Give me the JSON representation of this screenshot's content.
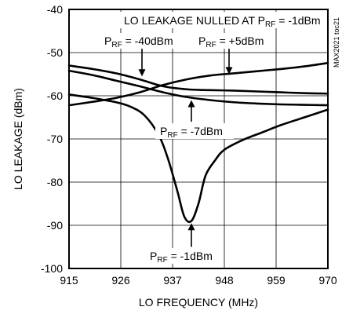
{
  "chart_data": {
    "type": "line",
    "title": "LO LEAKAGE NULLED AT P<sub>RF</sub> = -1dBm",
    "title_parts": {
      "pre": "LO LEAKAGE NULLED AT P",
      "sub": "RF",
      "post": " = -1dBm"
    },
    "code": "MAX2021 toc21",
    "xlabel": "LO FREQUENCY (MHz)",
    "ylabel": "LO LEAKAGE (dBm)",
    "xlim": [
      915,
      970
    ],
    "ylim": [
      -100,
      -40
    ],
    "xticks": [
      915,
      926,
      937,
      948,
      959,
      970
    ],
    "yticks": [
      -40,
      -50,
      -60,
      -70,
      -80,
      -90,
      -100
    ],
    "grid": true,
    "series": [
      {
        "name": "PRF = -40dBm",
        "x": [
          915,
          920,
          925,
          930,
          935,
          940,
          945,
          950,
          955,
          960,
          965,
          970
        ],
        "y": [
          -53,
          -53.8,
          -54.8,
          -56.2,
          -57.8,
          -58.5,
          -58.7,
          -58.8,
          -59.0,
          -59.2,
          -59.4,
          -59.5
        ]
      },
      {
        "name": "PRF = +5dBm",
        "x": [
          915,
          920,
          925,
          930,
          935,
          940,
          945,
          950,
          955,
          960,
          965,
          970
        ],
        "y": [
          -62.2,
          -61.4,
          -60.5,
          -59.2,
          -57.5,
          -56.2,
          -55.3,
          -54.8,
          -54.3,
          -53.8,
          -53.2,
          -52.4
        ]
      },
      {
        "name": "PRF = -7dBm",
        "x": [
          915,
          920,
          925,
          930,
          935,
          940,
          945,
          950,
          955,
          960,
          965,
          970
        ],
        "y": [
          -54.2,
          -55.2,
          -56.5,
          -57.8,
          -59.2,
          -60.3,
          -61.0,
          -61.5,
          -61.8,
          -62.0,
          -62.1,
          -62.2
        ]
      },
      {
        "name": "PRF = -1dBm",
        "x": [
          915,
          920,
          925,
          928,
          931,
          934,
          936,
          938,
          939.5,
          941,
          942.5,
          944,
          946,
          948,
          952,
          956,
          960,
          965,
          970
        ],
        "y": [
          -59.7,
          -60.5,
          -61.5,
          -62.5,
          -64.5,
          -69,
          -74.5,
          -82,
          -88,
          -89,
          -85,
          -78.5,
          -75,
          -72.5,
          -70.2,
          -68.5,
          -66.8,
          -65,
          -63.2
        ]
      }
    ],
    "annotations": [
      {
        "parts": [
          "P",
          "RF",
          " = -40dBm"
        ],
        "arrow_x": 930.5,
        "arrow_from_y": -47.8,
        "arrow_to_y": -55.5
      },
      {
        "parts": [
          "P",
          "RF",
          " = +5dBm"
        ],
        "arrow_x": 949,
        "arrow_from_y": -47.8,
        "arrow_to_y": -55
      },
      {
        "parts": [
          "P",
          "RF",
          " = -7dBm"
        ],
        "arrow_x": 941,
        "arrow_from_y": -66,
        "arrow_to_y": -61
      },
      {
        "parts": [
          "P",
          "RF",
          " = -1dBm"
        ],
        "arrow_x": 941,
        "arrow_from_y": -95,
        "arrow_to_y": -89.5
      }
    ]
  }
}
